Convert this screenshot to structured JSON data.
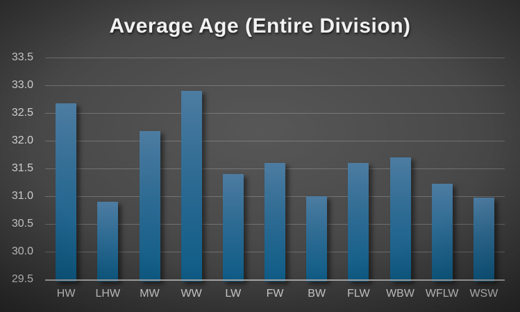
{
  "chart_data": {
    "type": "bar",
    "title": "Average Age (Entire Division)",
    "categories": [
      "HW",
      "LHW",
      "MW",
      "WW",
      "LW",
      "FW",
      "BW",
      "FLW",
      "WBW",
      "WFLW",
      "WSW"
    ],
    "values": [
      32.68,
      30.9,
      32.17,
      32.9,
      31.4,
      31.6,
      31.0,
      31.6,
      31.7,
      31.23,
      30.97
    ],
    "xlabel": "",
    "ylabel": "",
    "ylim": [
      29.5,
      33.5
    ],
    "ytick_labels": [
      "33.5",
      "33.0",
      "32.5",
      "32.0",
      "31.5",
      "31.0",
      "30.5",
      "30.0",
      "29.5"
    ],
    "grid": true,
    "legend_position": "none",
    "colors": {
      "bar_top": "#4d7ca1",
      "bar_mid": "#2e6b93",
      "bar_bottom": "#0d5c87",
      "gridline": "rgba(255,255,255,0.22)",
      "axis_line": "#a8a8a8",
      "tick_label": "#d4d4d4",
      "title": "#f2f2f2"
    }
  }
}
